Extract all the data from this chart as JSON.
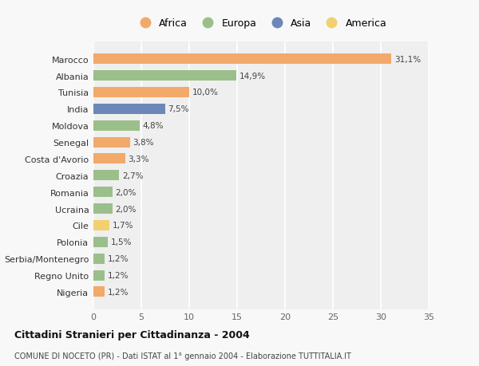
{
  "countries": [
    "Nigeria",
    "Regno Unito",
    "Serbia/Montenegro",
    "Polonia",
    "Cile",
    "Ucraina",
    "Romania",
    "Croazia",
    "Costa d'Avorio",
    "Senegal",
    "Moldova",
    "India",
    "Tunisia",
    "Albania",
    "Marocco"
  ],
  "values": [
    1.2,
    1.2,
    1.2,
    1.5,
    1.7,
    2.0,
    2.0,
    2.7,
    3.3,
    3.8,
    4.8,
    7.5,
    10.0,
    14.9,
    31.1
  ],
  "labels": [
    "1,2%",
    "1,2%",
    "1,2%",
    "1,5%",
    "1,7%",
    "2,0%",
    "2,0%",
    "2,7%",
    "3,3%",
    "3,8%",
    "4,8%",
    "7,5%",
    "10,0%",
    "14,9%",
    "31,1%"
  ],
  "continents": [
    "Africa",
    "Europa",
    "Europa",
    "Europa",
    "America",
    "Europa",
    "Europa",
    "Europa",
    "Africa",
    "Africa",
    "Europa",
    "Asia",
    "Africa",
    "Europa",
    "Africa"
  ],
  "colors": {
    "Africa": "#F2A96A",
    "Europa": "#9BBF8A",
    "Asia": "#6B88B8",
    "America": "#F2D070"
  },
  "legend_order": [
    "Africa",
    "Europa",
    "Asia",
    "America"
  ],
  "title": "Cittadini Stranieri per Cittadinanza - 2004",
  "subtitle": "COMUNE DI NOCETO (PR) - Dati ISTAT al 1° gennaio 2004 - Elaborazione TUTTITALIA.IT",
  "xlim": [
    0,
    35
  ],
  "xticks": [
    0,
    5,
    10,
    15,
    20,
    25,
    30,
    35
  ],
  "background_color": "#f8f8f8",
  "plot_bg_color": "#efefef",
  "grid_color": "#ffffff"
}
